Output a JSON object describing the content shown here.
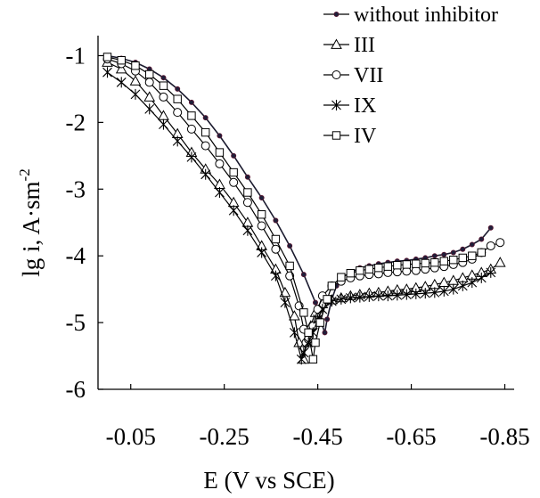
{
  "chart_data": {
    "type": "line",
    "title": "",
    "xlabel": "E (V vs SCE)",
    "ylabel_main": "lg i, A·sm",
    "ylabel_sup": "-2",
    "xlim": [
      0.02,
      -0.87
    ],
    "ylim": [
      -6,
      -0.7
    ],
    "xticks": [
      -0.05,
      -0.25,
      -0.45,
      -0.65,
      -0.85
    ],
    "xtick_labels": [
      "-0.05",
      "-0.25",
      "-0.45",
      "-0.65",
      "-0.85"
    ],
    "yticks": [
      -1,
      -2,
      -3,
      -4,
      -5,
      -6
    ],
    "ytick_labels": [
      "-1",
      "-2",
      "-3",
      "-4",
      "-5",
      "-6"
    ],
    "grid": false,
    "legend_position": "top-right",
    "series": [
      {
        "name": "without inhibitor",
        "marker": "dot",
        "x": [
          0.0,
          -0.03,
          -0.06,
          -0.09,
          -0.12,
          -0.15,
          -0.18,
          -0.21,
          -0.24,
          -0.27,
          -0.3,
          -0.33,
          -0.36,
          -0.39,
          -0.42,
          -0.445,
          -0.455,
          -0.465,
          -0.47,
          -0.48,
          -0.49,
          -0.5,
          -0.52,
          -0.54,
          -0.56,
          -0.58,
          -0.6,
          -0.62,
          -0.64,
          -0.66,
          -0.68,
          -0.7,
          -0.72,
          -0.74,
          -0.76,
          -0.78,
          -0.8,
          -0.82
        ],
        "y": [
          -1.0,
          -1.04,
          -1.1,
          -1.2,
          -1.33,
          -1.5,
          -1.7,
          -1.93,
          -2.2,
          -2.5,
          -2.82,
          -3.13,
          -3.47,
          -3.85,
          -4.28,
          -4.7,
          -4.95,
          -5.15,
          -4.95,
          -4.65,
          -4.45,
          -4.33,
          -4.25,
          -4.18,
          -4.15,
          -4.12,
          -4.1,
          -4.08,
          -4.07,
          -4.05,
          -4.03,
          -4.0,
          -3.98,
          -3.95,
          -3.9,
          -3.83,
          -3.75,
          -3.58
        ]
      },
      {
        "name": "III",
        "marker": "triangle",
        "x": [
          0.0,
          -0.03,
          -0.06,
          -0.09,
          -0.12,
          -0.15,
          -0.18,
          -0.21,
          -0.24,
          -0.27,
          -0.3,
          -0.33,
          -0.36,
          -0.38,
          -0.4,
          -0.41,
          -0.42,
          -0.425,
          -0.435,
          -0.445,
          -0.46,
          -0.48,
          -0.5,
          -0.52,
          -0.54,
          -0.56,
          -0.58,
          -0.6,
          -0.62,
          -0.64,
          -0.66,
          -0.68,
          -0.7,
          -0.72,
          -0.74,
          -0.76,
          -0.78,
          -0.8,
          -0.82,
          -0.84
        ],
        "y": [
          -1.1,
          -1.2,
          -1.38,
          -1.62,
          -1.9,
          -2.17,
          -2.45,
          -2.7,
          -2.93,
          -3.2,
          -3.5,
          -3.85,
          -4.2,
          -4.55,
          -4.9,
          -5.3,
          -5.55,
          -5.3,
          -5.05,
          -4.85,
          -4.72,
          -4.66,
          -4.63,
          -4.6,
          -4.58,
          -4.56,
          -4.55,
          -4.53,
          -4.51,
          -4.5,
          -4.48,
          -4.46,
          -4.43,
          -4.4,
          -4.37,
          -4.33,
          -4.29,
          -4.25,
          -4.2,
          -4.1
        ]
      },
      {
        "name": "VII",
        "marker": "circle",
        "x": [
          0.0,
          -0.03,
          -0.06,
          -0.09,
          -0.12,
          -0.15,
          -0.18,
          -0.21,
          -0.24,
          -0.27,
          -0.3,
          -0.33,
          -0.36,
          -0.39,
          -0.41,
          -0.42,
          -0.425,
          -0.43,
          -0.44,
          -0.45,
          -0.46,
          -0.48,
          -0.5,
          -0.52,
          -0.54,
          -0.56,
          -0.58,
          -0.6,
          -0.62,
          -0.64,
          -0.66,
          -0.68,
          -0.7,
          -0.72,
          -0.74,
          -0.76,
          -0.78,
          -0.8,
          -0.82,
          -0.84
        ],
        "y": [
          -1.05,
          -1.12,
          -1.23,
          -1.4,
          -1.62,
          -1.85,
          -2.1,
          -2.35,
          -2.62,
          -2.9,
          -3.2,
          -3.55,
          -3.9,
          -4.3,
          -4.75,
          -5.1,
          -5.3,
          -5.25,
          -5.05,
          -4.8,
          -4.6,
          -4.45,
          -4.38,
          -4.33,
          -4.3,
          -4.28,
          -4.27,
          -4.25,
          -4.24,
          -4.23,
          -4.22,
          -4.2,
          -4.18,
          -4.16,
          -4.13,
          -4.1,
          -4.05,
          -3.95,
          -3.85,
          -3.8
        ]
      },
      {
        "name": "IX",
        "marker": "star",
        "x": [
          0.0,
          -0.03,
          -0.06,
          -0.09,
          -0.12,
          -0.15,
          -0.18,
          -0.21,
          -0.24,
          -0.27,
          -0.3,
          -0.33,
          -0.36,
          -0.38,
          -0.4,
          -0.415,
          -0.42,
          -0.43,
          -0.44,
          -0.45,
          -0.46,
          -0.48,
          -0.5,
          -0.52,
          -0.54,
          -0.56,
          -0.58,
          -0.6,
          -0.62,
          -0.64,
          -0.66,
          -0.68,
          -0.7,
          -0.72,
          -0.74,
          -0.76,
          -0.78,
          -0.8,
          -0.82
        ],
        "y": [
          -1.25,
          -1.4,
          -1.58,
          -1.8,
          -2.03,
          -2.28,
          -2.52,
          -2.78,
          -3.05,
          -3.32,
          -3.62,
          -3.95,
          -4.3,
          -4.7,
          -5.15,
          -5.55,
          -5.45,
          -5.3,
          -5.15,
          -4.95,
          -4.8,
          -4.68,
          -4.65,
          -4.63,
          -4.62,
          -4.61,
          -4.6,
          -4.6,
          -4.59,
          -4.58,
          -4.57,
          -4.56,
          -4.55,
          -4.53,
          -4.5,
          -4.45,
          -4.4,
          -4.33,
          -4.25
        ]
      },
      {
        "name": "IV",
        "marker": "square",
        "x": [
          0.0,
          -0.03,
          -0.06,
          -0.09,
          -0.12,
          -0.15,
          -0.18,
          -0.21,
          -0.24,
          -0.27,
          -0.3,
          -0.33,
          -0.36,
          -0.39,
          -0.42,
          -0.43,
          -0.44,
          -0.445,
          -0.455,
          -0.47,
          -0.48,
          -0.5,
          -0.52,
          -0.54,
          -0.56,
          -0.58,
          -0.6,
          -0.62,
          -0.64,
          -0.66,
          -0.68,
          -0.7,
          -0.72,
          -0.74,
          -0.76,
          -0.78,
          -0.8
        ],
        "y": [
          -1.02,
          -1.07,
          -1.15,
          -1.28,
          -1.45,
          -1.65,
          -1.9,
          -2.15,
          -2.45,
          -2.75,
          -3.05,
          -3.38,
          -3.75,
          -4.15,
          -4.85,
          -5.15,
          -5.55,
          -5.3,
          -5.0,
          -4.65,
          -4.45,
          -4.32,
          -4.26,
          -4.22,
          -4.2,
          -4.18,
          -4.16,
          -4.14,
          -4.13,
          -4.12,
          -4.11,
          -4.1,
          -4.08,
          -4.06,
          -4.03,
          -4.0,
          -3.95
        ]
      }
    ]
  }
}
